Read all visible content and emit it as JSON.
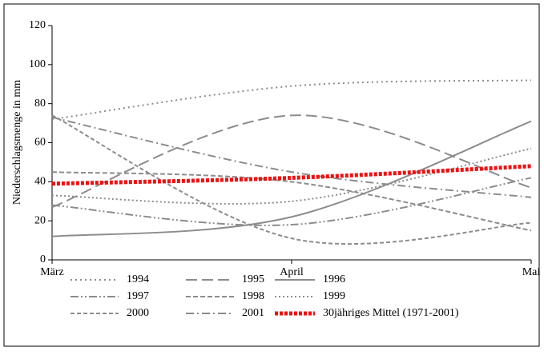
{
  "chart_data": {
    "type": "line",
    "y_label": "Niederschlagsmenge in mm",
    "categories": [
      "März",
      "April",
      "Mai"
    ],
    "ylim": [
      0,
      120
    ],
    "yticks": [
      0,
      20,
      40,
      60,
      80,
      100,
      120
    ],
    "smooth": true,
    "series": [
      {
        "name": "1994",
        "color": "#8c8c8c",
        "dash": "2,4",
        "width": 2,
        "values": [
          72,
          89,
          92
        ]
      },
      {
        "name": "1995",
        "color": "#8c8c8c",
        "dash": "14,6",
        "width": 2,
        "values": [
          27,
          74,
          37
        ]
      },
      {
        "name": "1996",
        "color": "#8c8c8c",
        "dash": "none",
        "width": 2,
        "values": [
          12,
          22,
          71
        ]
      },
      {
        "name": "1997",
        "color": "#8c8c8c",
        "dash": "10,3,2,3,2,3",
        "width": 2,
        "values": [
          28,
          18,
          42
        ]
      },
      {
        "name": "1998",
        "color": "#8c8c8c",
        "dash": "6,3",
        "width": 2,
        "values": [
          45,
          40,
          15
        ]
      },
      {
        "name": "1999",
        "color": "#8c8c8c",
        "dash": "2,3",
        "width": 2,
        "values": [
          33,
          30,
          57
        ]
      },
      {
        "name": "2000",
        "color": "#8c8c8c",
        "dash": "5,3",
        "width": 2,
        "values": [
          74,
          11,
          19
        ]
      },
      {
        "name": "2001",
        "color": "#8c8c8c",
        "dash": "10,4,2,4",
        "width": 2,
        "values": [
          73,
          45,
          32
        ]
      },
      {
        "name": "30jähriges Mittel (1971-2001)",
        "color": "#ee1111",
        "dash": "4,2",
        "width": 5,
        "values": [
          39,
          42,
          48
        ]
      }
    ]
  }
}
